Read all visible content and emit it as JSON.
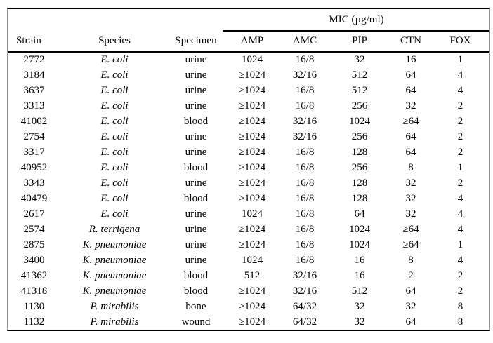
{
  "table": {
    "group_header": "MIC (µg/ml)",
    "columns": [
      "Strain",
      "Species",
      "Specimen",
      "AMP",
      "AMC",
      "PIP",
      "CTN",
      "FOX"
    ],
    "rows": [
      [
        "2772",
        "E. coli",
        "urine",
        "1024",
        "16/8",
        "32",
        "16",
        "1"
      ],
      [
        "3184",
        "E. coli",
        "urine",
        "≥1024",
        "32/16",
        "512",
        "64",
        "4"
      ],
      [
        "3637",
        "E. coli",
        "urine",
        "≥1024",
        "16/8",
        "512",
        "64",
        "4"
      ],
      [
        "3313",
        "E. coli",
        "urine",
        "≥1024",
        "16/8",
        "256",
        "32",
        "2"
      ],
      [
        "41002",
        "E. coli",
        "blood",
        "≥1024",
        "32/16",
        "1024",
        "≥64",
        "2"
      ],
      [
        "2754",
        "E. coli",
        "urine",
        "≥1024",
        "32/16",
        "256",
        "64",
        "2"
      ],
      [
        "3317",
        "E. coli",
        "urine",
        "≥1024",
        "16/8",
        "128",
        "64",
        "2"
      ],
      [
        "40952",
        "E. coli",
        "blood",
        "≥1024",
        "16/8",
        "256",
        "8",
        "1"
      ],
      [
        "3343",
        "E. coli",
        "urine",
        "≥1024",
        "16/8",
        "128",
        "32",
        "2"
      ],
      [
        "40479",
        "E. coli",
        "blood",
        "≥1024",
        "16/8",
        "128",
        "32",
        "4"
      ],
      [
        "2617",
        "E. coli",
        "urine",
        "1024",
        "16/8",
        "64",
        "32",
        "4"
      ],
      [
        "2574",
        "R. terrigena",
        "urine",
        "≥1024",
        "16/8",
        "1024",
        "≥64",
        "4"
      ],
      [
        "2875",
        "K. pneumoniae",
        "urine",
        "≥1024",
        "16/8",
        "1024",
        "≥64",
        "1"
      ],
      [
        "3400",
        "K. pneumoniae",
        "urine",
        "1024",
        "16/8",
        "16",
        "8",
        "4"
      ],
      [
        "41362",
        "K. pneumoniae",
        "blood",
        "512",
        "32/16",
        "16",
        "2",
        "2"
      ],
      [
        "41318",
        "K. pneumoniae",
        "blood",
        "≥1024",
        "32/16",
        "512",
        "64",
        "2"
      ],
      [
        "1130",
        "P. mirabilis",
        "bone",
        "≥1024",
        "64/32",
        "32",
        "32",
        "8"
      ],
      [
        "1132",
        "P. mirabilis",
        "wound",
        "≥1024",
        "64/32",
        "32",
        "64",
        "8"
      ]
    ]
  }
}
